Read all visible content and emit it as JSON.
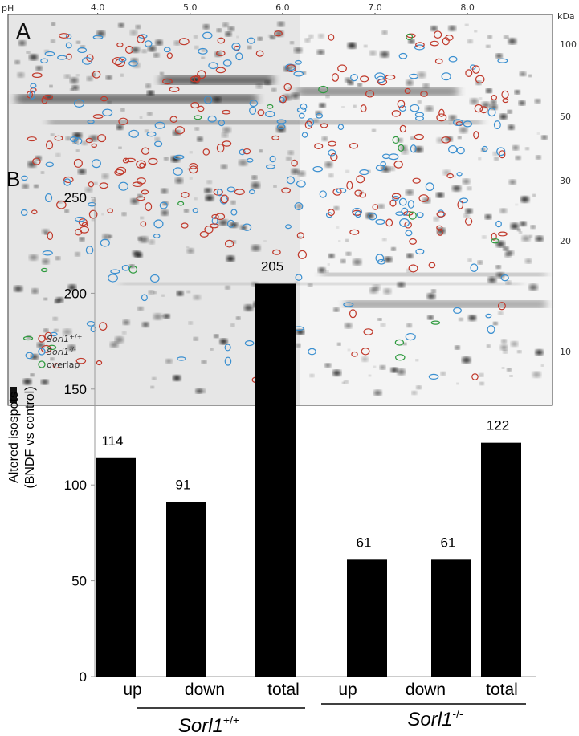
{
  "panel_a": {
    "type": "gel image",
    "panel_label": "A",
    "x_axis_label": "pH",
    "xlim": [
      3.03,
      8.92
    ],
    "xticks": [
      {
        "value": 4,
        "label": "4.0"
      },
      {
        "value": 5,
        "label": "5.0"
      },
      {
        "value": 6,
        "label": "6.0"
      },
      {
        "value": 7,
        "label": "7.0"
      },
      {
        "value": 8,
        "label": "8.0"
      }
    ],
    "y_axis_label": "kDa",
    "y_tick_labels": [
      "100",
      "50",
      "30",
      "20",
      "10"
    ],
    "legend": [
      {
        "name": "Sorl1",
        "sup": "+/+",
        "color": "#c0392b"
      },
      {
        "name": "Sorl1",
        "sup": "-/-",
        "color": "#3a8fd0"
      },
      {
        "name": "overlap",
        "color": "#2e9a3e"
      }
    ]
  },
  "chart_data": {
    "type": "bar",
    "panel_label": "B",
    "y_label_lines": [
      "Altered isospots",
      "(BNDF vs control)"
    ],
    "categories": [
      "up",
      "down",
      "total",
      "up",
      "down",
      "total"
    ],
    "values": [
      114,
      91,
      205,
      61,
      61,
      122
    ],
    "color": "#000000",
    "ylim": [
      0,
      250
    ],
    "yticks": [
      0,
      50,
      100,
      150,
      200,
      250
    ],
    "groups": [
      {
        "name": "Sorl1",
        "sup": "+/+"
      },
      {
        "name": "Sorl1",
        "sup": "-/-"
      }
    ]
  }
}
